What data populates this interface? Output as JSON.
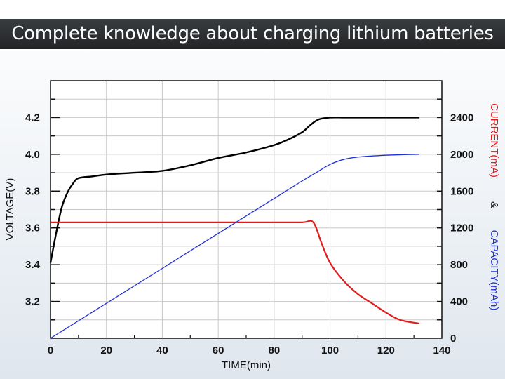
{
  "header": {
    "title": "Complete knowledge about charging lithium batteries"
  },
  "chart_data": {
    "type": "line",
    "xlabel": "TIME(min)",
    "ylabel_left": "VOLTAGE(V)",
    "ylabel_right": {
      "current": "CURRENT(mA)",
      "amp": "&",
      "capacity": "CAPACITY(mAh)"
    },
    "xlim": [
      0,
      140
    ],
    "ylim_left": [
      3.0,
      4.4
    ],
    "ylim_right": [
      0,
      2800
    ],
    "x_ticks": [
      "0",
      "20",
      "40",
      "60",
      "80",
      "100",
      "120",
      "140"
    ],
    "y_ticks_left": [
      "3.2",
      "3.4",
      "3.6",
      "3.8",
      "4.0",
      "4.2"
    ],
    "y_ticks_right": [
      "0",
      "400",
      "800",
      "1200",
      "1600",
      "2000",
      "2400"
    ],
    "grid": true,
    "series": [
      {
        "name": "VOLTAGE(V)",
        "axis": "left",
        "color": "#000000",
        "x": [
          0,
          2,
          4,
          6,
          8,
          10,
          15,
          20,
          30,
          40,
          50,
          60,
          70,
          80,
          85,
          90,
          93,
          96,
          100,
          105,
          110,
          120,
          132
        ],
        "y": [
          3.41,
          3.57,
          3.71,
          3.79,
          3.84,
          3.87,
          3.88,
          3.89,
          3.9,
          3.91,
          3.94,
          3.98,
          4.01,
          4.05,
          4.08,
          4.12,
          4.16,
          4.19,
          4.2,
          4.2,
          4.2,
          4.2,
          4.2
        ]
      },
      {
        "name": "CURRENT(mA)",
        "axis": "right",
        "color": "#e21b1b",
        "x": [
          0,
          10,
          20,
          40,
          60,
          80,
          90,
          94,
          97,
          100,
          105,
          110,
          115,
          120,
          125,
          132
        ],
        "y": [
          1260,
          1260,
          1260,
          1260,
          1260,
          1260,
          1260,
          1260,
          1030,
          820,
          620,
          480,
          380,
          280,
          200,
          160
        ]
      },
      {
        "name": "CAPACITY(mAh)",
        "axis": "right",
        "color": "#2233d6",
        "x": [
          0,
          20,
          40,
          60,
          80,
          90,
          95,
          100,
          105,
          110,
          120,
          132
        ],
        "y": [
          0,
          380,
          760,
          1140,
          1520,
          1710,
          1800,
          1890,
          1945,
          1970,
          1990,
          2000
        ]
      }
    ]
  }
}
